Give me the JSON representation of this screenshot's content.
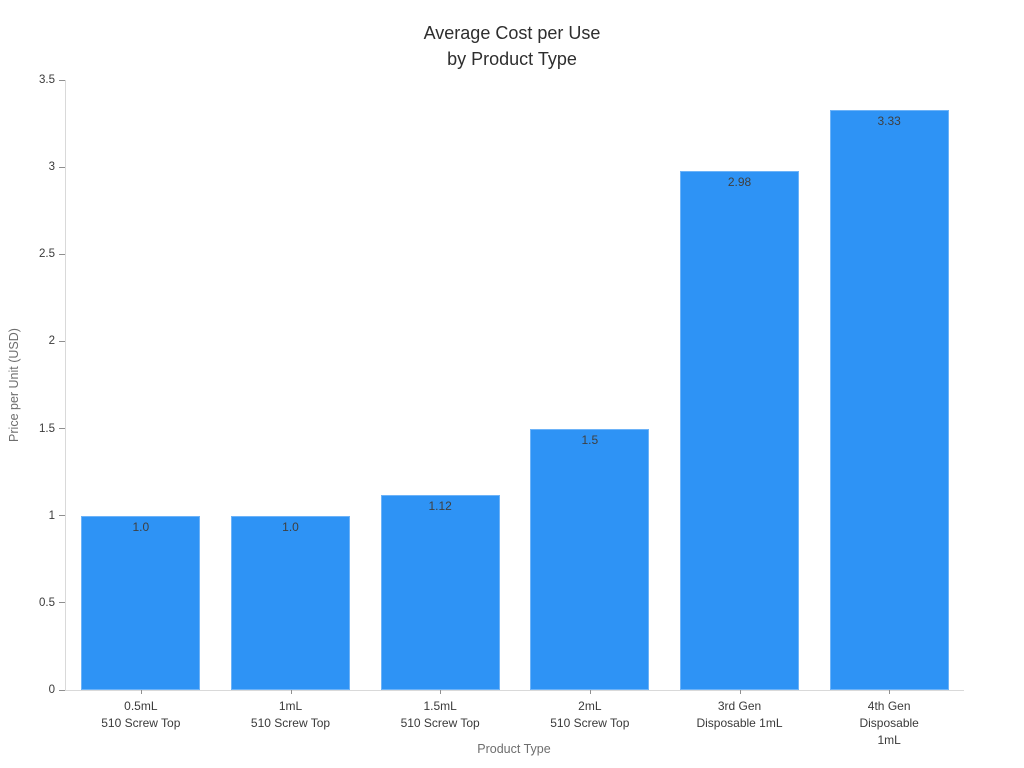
{
  "chart_data": {
    "type": "bar",
    "title": "Average Cost per Use\nby Product Type",
    "xlabel": "Product Type",
    "ylabel": "Price per Unit (USD)",
    "categories": [
      "0.5mL\n510 Screw Top",
      "1mL\n510 Screw Top",
      "1.5mL\n510 Screw Top",
      "2mL\n510 Screw Top",
      "3rd Gen\nDisposable 1mL",
      "4th Gen\nDisposable 1mL"
    ],
    "values": [
      1.0,
      1.0,
      1.12,
      1.5,
      2.98,
      3.33
    ],
    "value_labels": [
      "1.0",
      "1.0",
      "1.12",
      "1.5",
      "2.98",
      "3.33"
    ],
    "ytick_labels": [
      "0",
      "0.5",
      "1",
      "1.5",
      "2",
      "2.5",
      "3",
      "3.5"
    ],
    "ylim": [
      0,
      3.5
    ],
    "grid": false,
    "legend": "none",
    "colors": {
      "bar_fill": "#2E93F5",
      "axis_line": "#D9D9D9",
      "tick_mark": "#8F8F8F",
      "tick_label": "#3A3A3A",
      "title": "#2E2E2E",
      "axis_title": "#6E6E6E",
      "value_label": "#3F3F3F",
      "background": "#FFFFFF"
    }
  }
}
